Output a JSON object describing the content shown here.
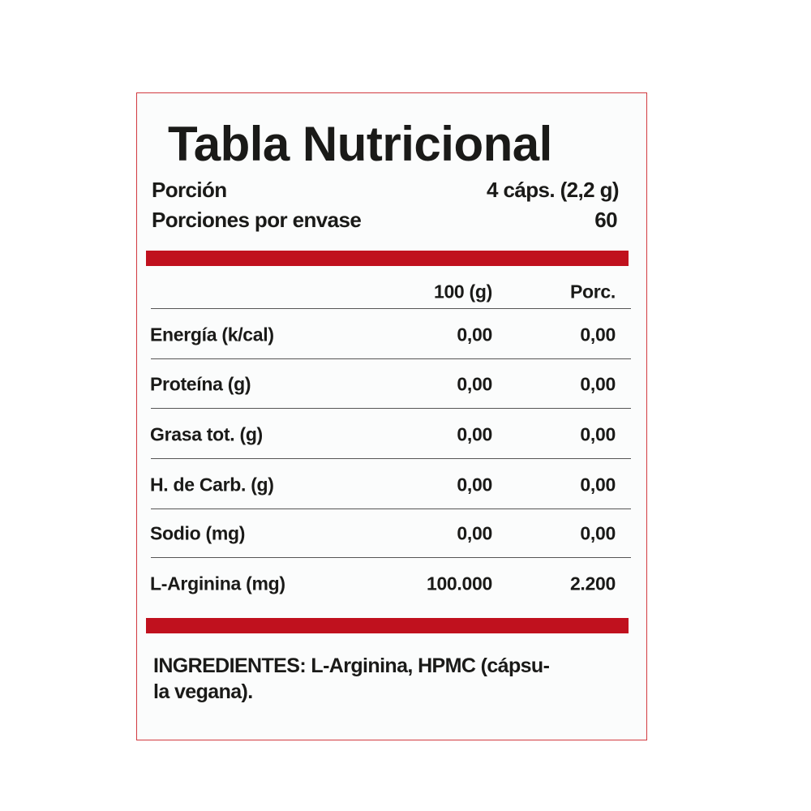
{
  "title": "Tabla Nutricional",
  "serving": {
    "label": "Porción",
    "value": "4 cáps. (2,2 g)"
  },
  "servings_per_container": {
    "label": "Porciones por envase",
    "value": "60"
  },
  "columns": [
    "100 (g)",
    "Porc."
  ],
  "rows": [
    {
      "name": "Energía (k/cal)",
      "per100": "0,00",
      "portion": "0,00"
    },
    {
      "name": "Proteína (g)",
      "per100": "0,00",
      "portion": "0,00"
    },
    {
      "name": "Grasa tot. (g)",
      "per100": "0,00",
      "portion": "0,00"
    },
    {
      "name": "H. de Carb. (g)",
      "per100": "0,00",
      "portion": "0,00"
    },
    {
      "name": "Sodio (mg)",
      "per100": "0,00",
      "portion": "0,00"
    },
    {
      "name": "L-Arginina (mg)",
      "per100": "100.000",
      "portion": "2.200"
    }
  ],
  "ingredients": {
    "line1": "INGREDIENTES: L-Arginina, HPMC (cápsu-",
    "line2": "la vegana)."
  },
  "colors": {
    "accent": "#c0111e",
    "border": "#d23a40"
  }
}
